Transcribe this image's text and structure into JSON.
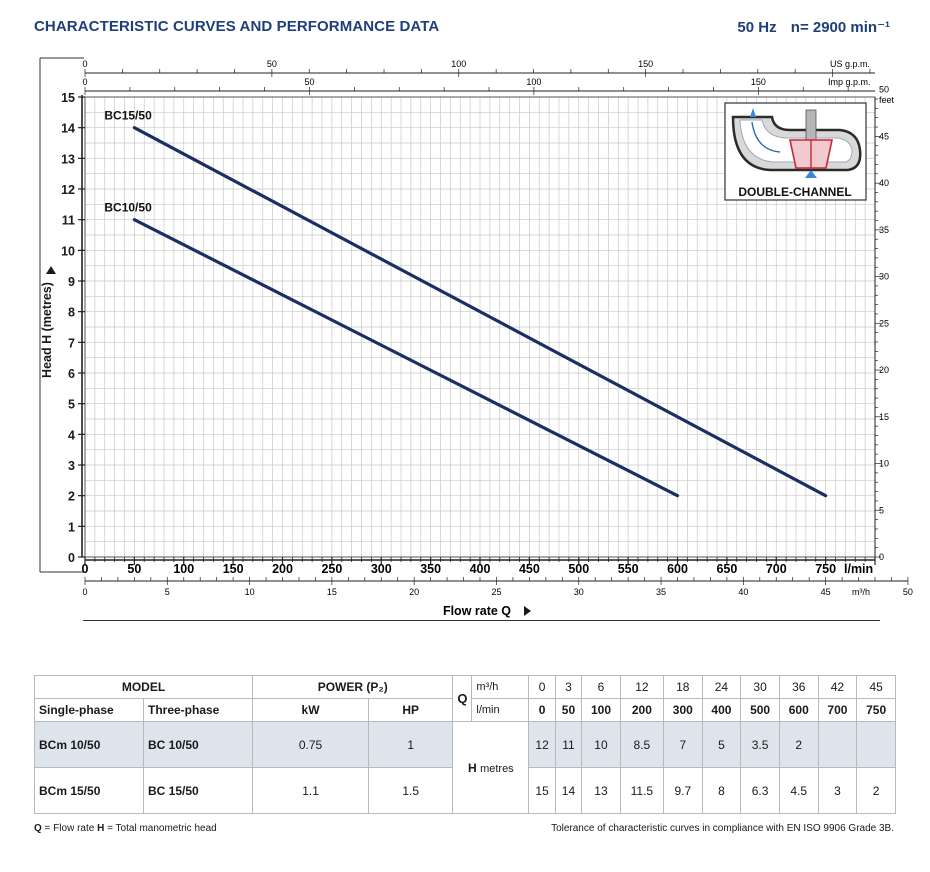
{
  "header": {
    "title": "CHARACTERISTIC CURVES AND PERFORMANCE DATA",
    "frequency": "50 Hz",
    "speed": "n= 2900 min⁻¹"
  },
  "chart_data": {
    "type": "line",
    "ylabel": "Head H  (metres)",
    "xlabel": "Flow rate  Q",
    "ylim": [
      0,
      15
    ],
    "xlim": [
      0,
      800
    ],
    "x_unit_main": "l/min",
    "y_ticks": [
      0,
      1,
      2,
      3,
      4,
      5,
      6,
      7,
      8,
      9,
      10,
      11,
      12,
      13,
      14,
      15
    ],
    "x_ticks": [
      50,
      100,
      150,
      200,
      250,
      300,
      350,
      400,
      450,
      500,
      550,
      600,
      650,
      700,
      750
    ],
    "x_zero_label": "0",
    "secondary_axes": {
      "us_gpm": {
        "label": "US g.p.m.",
        "ticks": [
          "0",
          "50",
          "100",
          "150"
        ],
        "values": [
          0,
          50,
          100,
          150
        ]
      },
      "imp_gpm": {
        "label": "Imp g.p.m.",
        "ticks": [
          "0",
          "50",
          "100",
          "150"
        ],
        "values": [
          0,
          50,
          100,
          150
        ]
      },
      "feet": {
        "label": "feet",
        "ticks": [
          "0",
          "5",
          "10",
          "15",
          "20",
          "25",
          "30",
          "35",
          "40",
          "45",
          "50"
        ],
        "values": [
          0,
          5,
          10,
          15,
          20,
          25,
          30,
          35,
          40,
          45,
          50
        ]
      },
      "m3h": {
        "label": "m³/h",
        "ticks": [
          "0",
          "5",
          "10",
          "15",
          "20",
          "25",
          "30",
          "35",
          "40",
          "45",
          "50"
        ],
        "values": [
          0,
          5,
          10,
          15,
          20,
          25,
          30,
          35,
          40,
          45,
          50
        ]
      }
    },
    "grid": true,
    "series": [
      {
        "name": "BC15/50",
        "x": [
          50,
          750
        ],
        "y": [
          14,
          2
        ]
      },
      {
        "name": "BC10/50",
        "x": [
          50,
          600
        ],
        "y": [
          11,
          2
        ]
      }
    ],
    "line_color": "#1c2f63"
  },
  "inset": {
    "label": "DOUBLE-CHANNEL"
  },
  "table": {
    "model_header": "MODEL",
    "power_header": "POWER (P₂)",
    "single_phase": "Single-phase",
    "three_phase": "Three-phase",
    "kw": "kW",
    "hp": "HP",
    "q_symbol": "Q",
    "m3h_unit": "m³/h",
    "lmin_unit": "l/min",
    "h_label": "H",
    "h_unit": "metres",
    "q_m3h": [
      "0",
      "3",
      "6",
      "12",
      "18",
      "24",
      "30",
      "36",
      "42",
      "45"
    ],
    "q_lmin": [
      "0",
      "50",
      "100",
      "200",
      "300",
      "400",
      "500",
      "600",
      "700",
      "750"
    ],
    "rows": [
      {
        "single": "BCm 10/50",
        "three": "BC 10/50",
        "kw": "0.75",
        "hp": "1",
        "heads": [
          "12",
          "11",
          "10",
          "8.5",
          "7",
          "5",
          "3.5",
          "2",
          "",
          ""
        ]
      },
      {
        "single": "BCm 15/50",
        "three": "BC 15/50",
        "kw": "1.1",
        "hp": "1.5",
        "heads": [
          "15",
          "14",
          "13",
          "11.5",
          "9.7",
          "8",
          "6.3",
          "4.5",
          "3",
          "2"
        ]
      }
    ]
  },
  "footnotes": {
    "left_q": "Q",
    "left_q_text": " = Flow rate   ",
    "left_h": "H",
    "left_h_text": " = Total manometric head",
    "right": "Tolerance of characteristic curves in compliance with EN ISO 9906 Grade 3B."
  }
}
